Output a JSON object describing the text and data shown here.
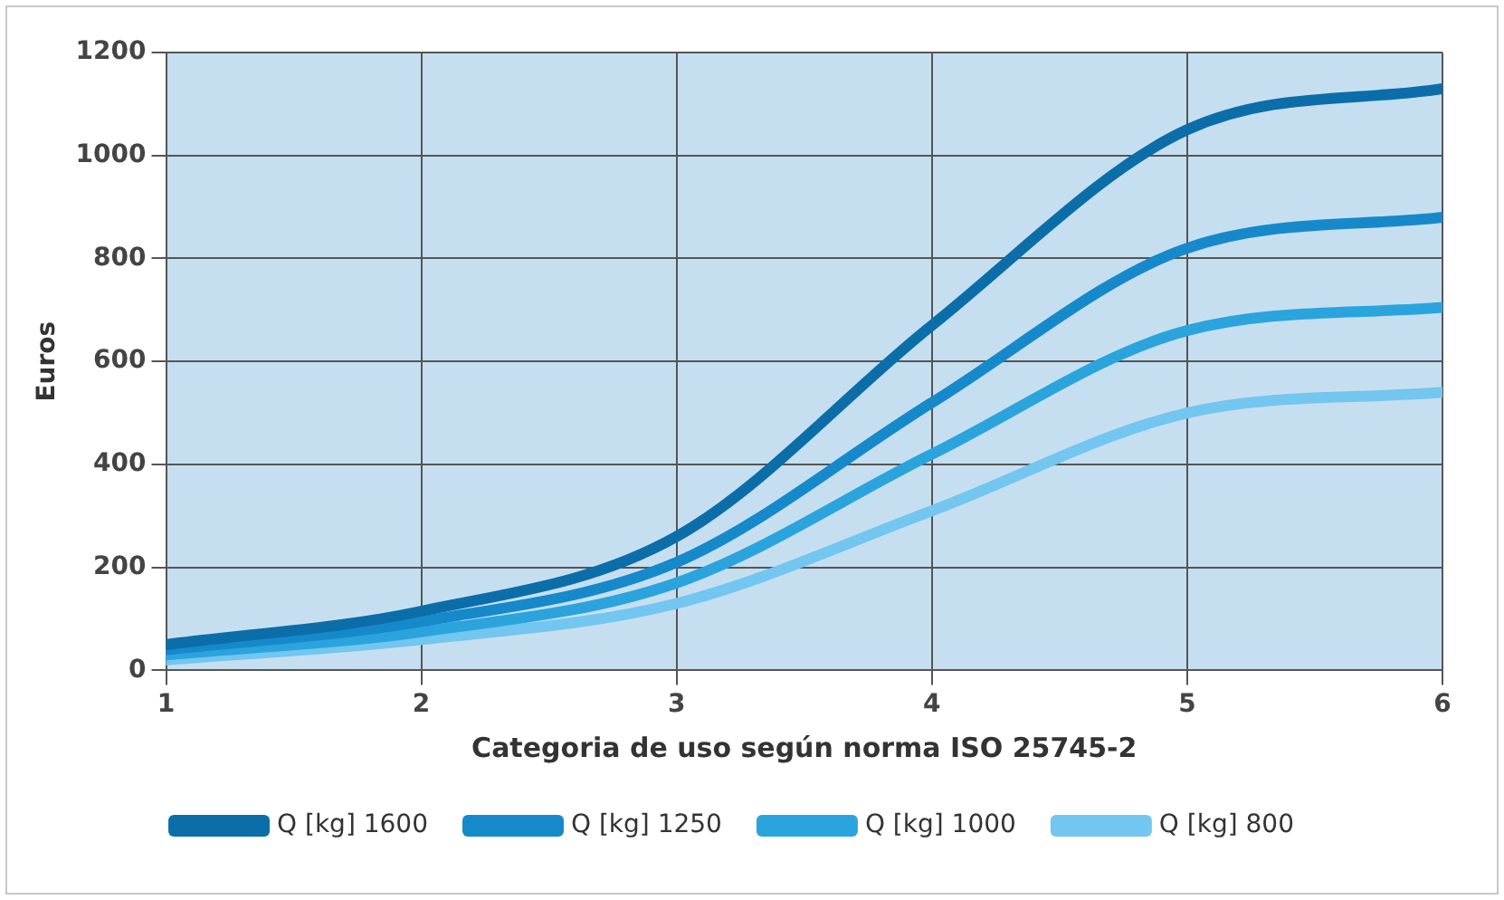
{
  "chart_data": {
    "type": "line",
    "xlabel": "Categoria de uso según norma ISO 25745-2",
    "ylabel": "Euros",
    "x": [
      1,
      2,
      3,
      4,
      5,
      6
    ],
    "xlim": [
      1,
      6
    ],
    "xticks": [
      1,
      2,
      3,
      4,
      5,
      6
    ],
    "ylim": [
      0,
      1200
    ],
    "yticks": [
      0,
      200,
      400,
      600,
      800,
      1000,
      1200
    ],
    "series": [
      {
        "name": "Q [kg] 1600",
        "color": "#0b6ea9",
        "values": [
          50,
          115,
          260,
          670,
          1050,
          1130
        ]
      },
      {
        "name": "Q [kg] 1250",
        "color": "#1689cb",
        "values": [
          40,
          95,
          210,
          520,
          820,
          880
        ]
      },
      {
        "name": "Q [kg] 1000",
        "color": "#2ba4dd",
        "values": [
          30,
          75,
          170,
          420,
          660,
          705
        ]
      },
      {
        "name": "Q [kg] 800",
        "color": "#72c6ef",
        "values": [
          20,
          60,
          130,
          310,
          500,
          540
        ]
      }
    ],
    "grid": true,
    "legend": "bottom",
    "marker": "none",
    "line_style": "solid"
  }
}
